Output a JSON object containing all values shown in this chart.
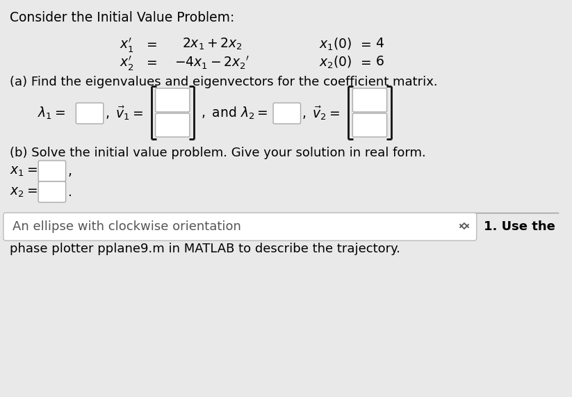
{
  "bg_color": "#e9e9e9",
  "white": "#ffffff",
  "title": "Consider the Initial Value Problem:",
  "part_a": "(a) Find the eigenvalues and eigenvectors for the coefficient matrix.",
  "part_b": "(b) Solve the initial value problem. Give your solution in real form.",
  "bottom_box_text": "An ellipse with clockwise orientation",
  "bottom_right_text": "1. Use the",
  "bottom_line_text": "phase plotter pplane9.m in MATLAB to describe the trajectory.",
  "fs_title": 13.5,
  "fs_body": 13.0,
  "fs_math": 13.5,
  "box_edge": "#aaaaaa",
  "bracket_color": "#111111",
  "divider_color": "#999999"
}
